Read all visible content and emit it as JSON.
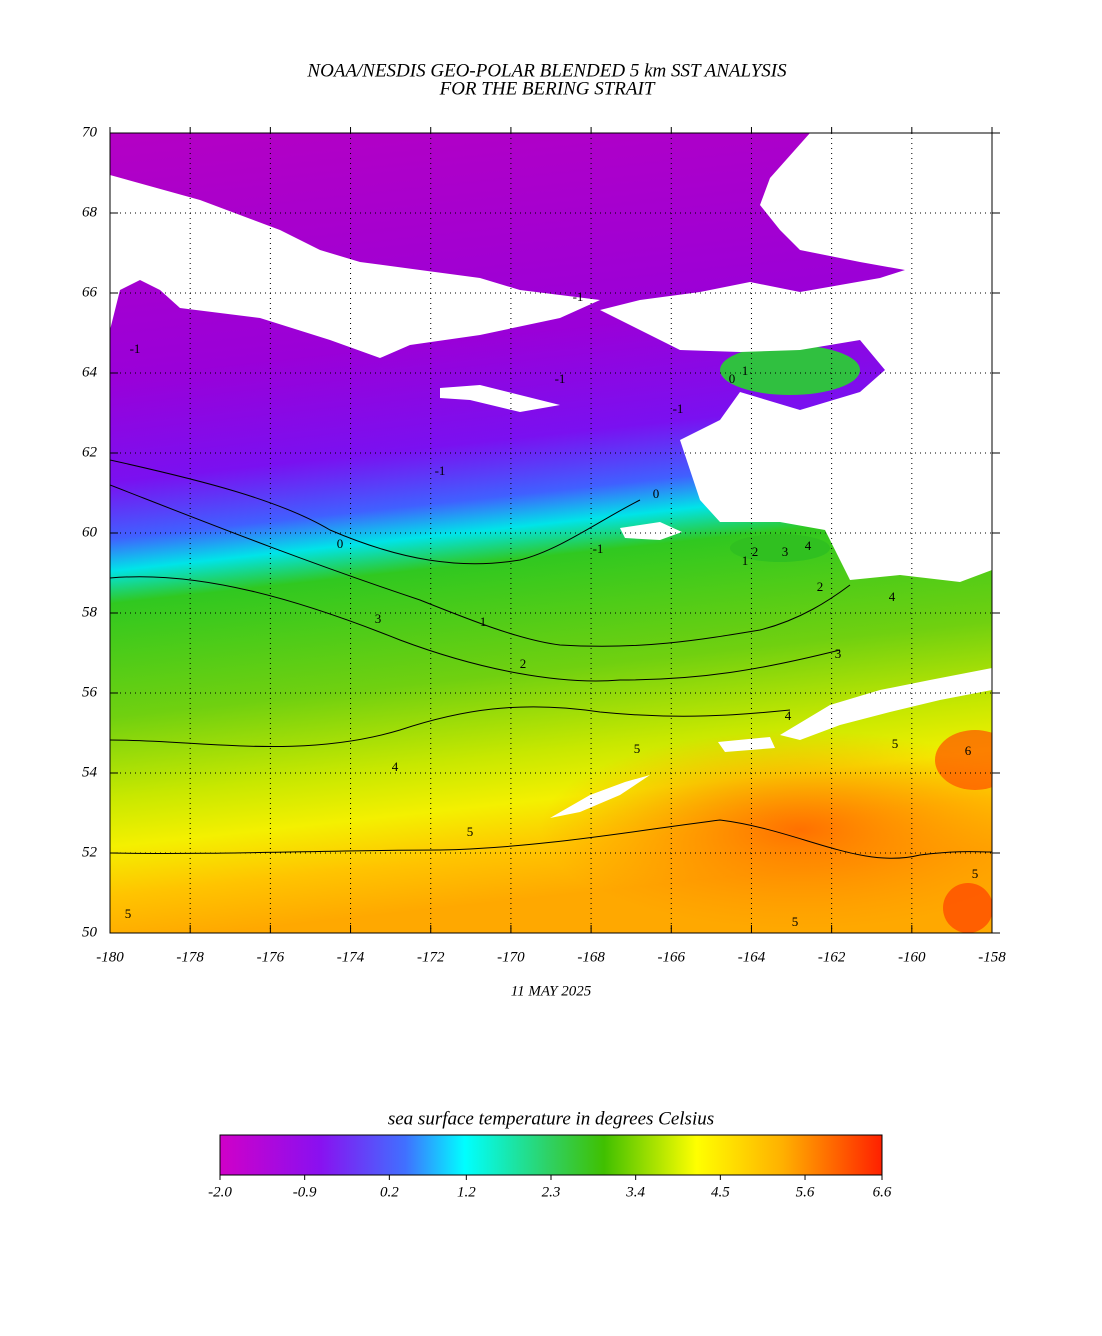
{
  "title": [
    "NOAA/NESDIS GEO-POLAR BLENDED 5 km SST ANALYSIS",
    "FOR THE BERING STRAIT"
  ],
  "map": {
    "xlim": [
      -180,
      -158
    ],
    "ylim": [
      50,
      70
    ],
    "xticks": [
      -180,
      -178,
      -176,
      -174,
      -172,
      -170,
      -168,
      -166,
      -164,
      -162,
      -160,
      -158
    ],
    "yticks": [
      50,
      52,
      54,
      56,
      58,
      60,
      62,
      64,
      66,
      68,
      70
    ],
    "date": "11 MAY 2025",
    "contour_labels": [
      -1,
      -1,
      -1,
      -1,
      -1,
      -1,
      0,
      0,
      0,
      1,
      1,
      1,
      2,
      2,
      2,
      3,
      3,
      3,
      4,
      4,
      4,
      4,
      5,
      5,
      5,
      5,
      5,
      5,
      6
    ]
  },
  "colorbar": {
    "title": "sea surface temperature in degrees Celsius",
    "range": [
      -2.0,
      6.6
    ],
    "ticks": [
      {
        "value": -2.0,
        "label": "-2.0"
      },
      {
        "value": -0.9,
        "label": "-0.9"
      },
      0.2,
      1.2,
      2.3,
      3.4,
      4.5,
      5.6,
      6.6
    ]
  }
}
